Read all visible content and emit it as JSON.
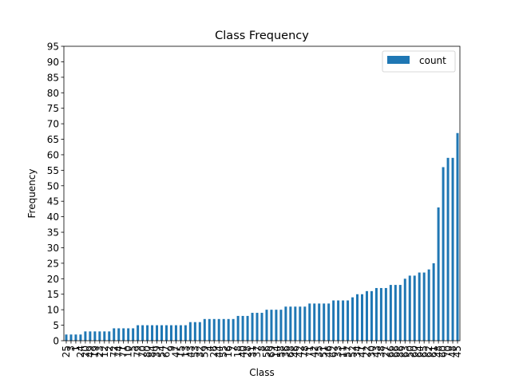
{
  "chart_data": {
    "type": "bar",
    "title": "Class Frequency",
    "xlabel": "Class",
    "ylabel": "Frequency",
    "ylim": [
      0,
      95
    ],
    "yticks": [
      0,
      5,
      10,
      15,
      20,
      25,
      30,
      35,
      40,
      45,
      50,
      55,
      60,
      65,
      70,
      75,
      80,
      85,
      90,
      95
    ],
    "grid": false,
    "legend_position": "top-right",
    "bar_color": "#1f77b4",
    "series": [
      {
        "name": "count",
        "values": [
          2,
          2,
          2,
          2,
          3,
          3,
          3,
          3,
          3,
          3,
          4,
          4,
          4,
          4,
          4,
          5,
          5,
          5,
          5,
          5,
          5,
          5,
          5,
          5,
          5,
          5,
          6,
          6,
          6,
          7,
          7,
          7,
          7,
          7,
          7,
          7,
          8,
          8,
          8,
          9,
          9,
          9,
          10,
          10,
          10,
          10,
          11,
          11,
          11,
          11,
          11,
          12,
          12,
          12,
          12,
          12,
          13,
          13,
          13,
          13,
          14,
          15,
          15,
          16,
          16,
          17,
          17,
          17,
          18,
          18,
          18,
          20,
          21,
          21,
          22,
          22,
          23,
          25,
          43,
          56,
          59,
          59,
          67
        ]
      }
    ],
    "categories": [
      "25",
      "3",
      "1",
      "24",
      "20",
      "49",
      "19",
      "23",
      "12",
      "2",
      "72",
      "74",
      "71",
      "10",
      "5",
      "79",
      "70",
      "80",
      "84",
      "39",
      "54",
      "67",
      "9",
      "47",
      "15",
      "13",
      "43",
      "53",
      "32",
      "59",
      "4",
      "26",
      "44",
      "55",
      "16",
      "7",
      "18",
      "40",
      "28",
      "31",
      "37",
      "8",
      "56",
      "69",
      "14",
      "58",
      "36",
      "68",
      "46",
      "42",
      "78",
      "71",
      "42",
      "35",
      "51",
      "46",
      "62",
      "33",
      "11",
      "57",
      "52",
      "34",
      "41",
      "22",
      "30",
      "43",
      "38",
      "27",
      "66",
      "66",
      "86",
      "63",
      "50",
      "60",
      "64",
      "65",
      "62",
      "61",
      "48",
      "60",
      "70",
      "48",
      "45"
    ]
  }
}
